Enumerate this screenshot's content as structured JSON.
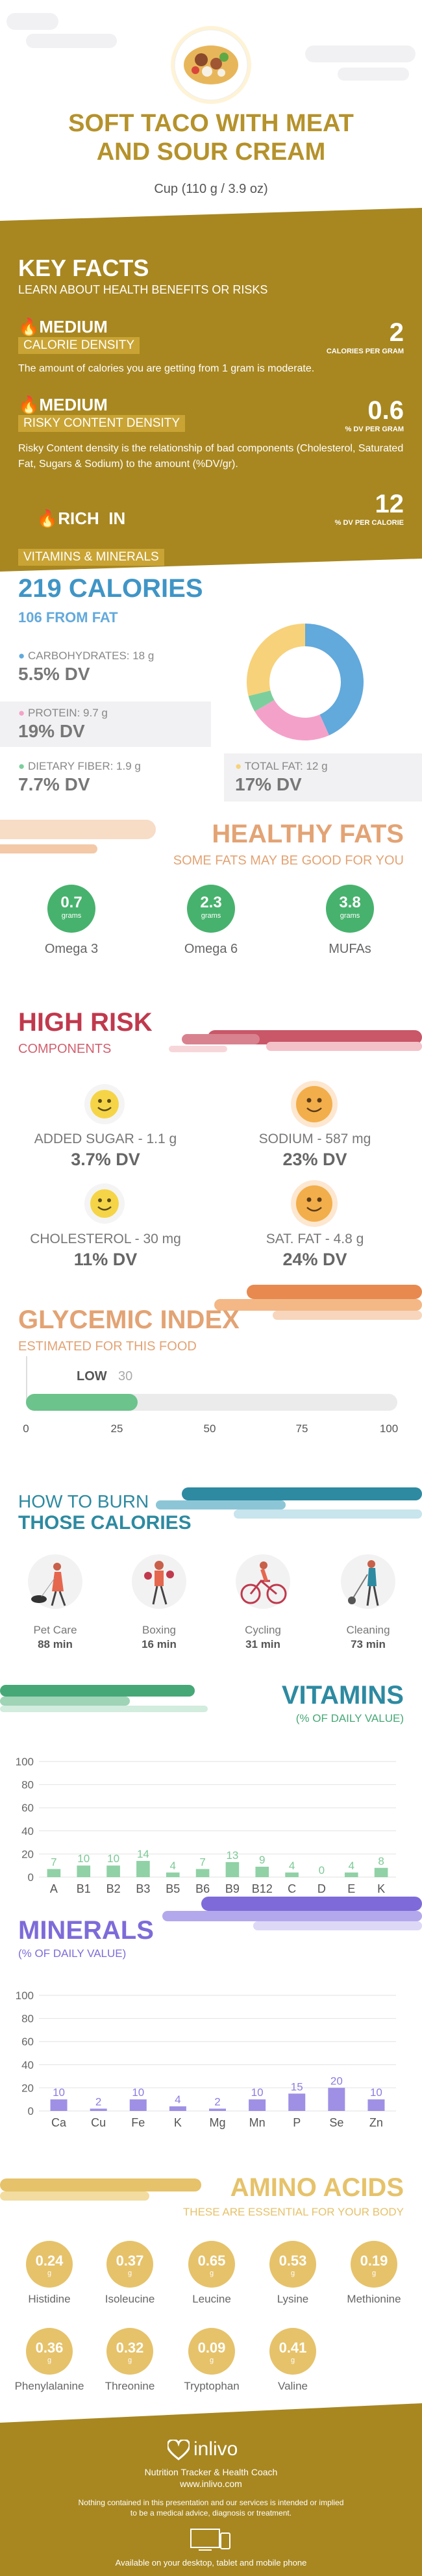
{
  "header": {
    "title_line1": "SOFT TACO WITH MEAT",
    "title_line2": "AND SOUR CREAM",
    "serving": "Cup (110 g / 3.9 oz)"
  },
  "key_facts": {
    "title": "KEY FACTS",
    "subtitle": "LEARN ABOUT HEALTH BENEFITS OR RISKS",
    "items": [
      {
        "level": "MEDIUM",
        "name": "CALORIE DENSITY",
        "value": "2",
        "unit": "CALORIES PER GRAM",
        "desc": "The amount of calories you are getting from 1 gram is moderate."
      },
      {
        "level": "MEDIUM",
        "name": "RISKY CONTENT DENSITY",
        "value": "0.6",
        "unit": "% DV PER GRAM",
        "desc": "Risky Content density is the relationship of bad components (Cholesterol, Saturated Fat, Sugars & Sodium) to the amount (%DV/gr)."
      },
      {
        "level": "RICH  IN",
        "name": "VITAMINS & MINERALS",
        "value": "12",
        "unit": "% DV PER CALORIE",
        "desc": ""
      }
    ]
  },
  "calories": {
    "title": "219 CALORIES",
    "from_fat": "106 FROM FAT",
    "carbs_label": "CARBOHYDRATES: 18 g",
    "carbs_dv": "5.5% DV",
    "protein_label": "PROTEIN: 9.7 g",
    "protein_dv": "19% DV",
    "fiber_label": "DIETARY FIBER: 1.9 g",
    "fiber_dv": "7.7% DV",
    "fat_label": "TOTAL FAT: 12 g",
    "fat_dv": "17% DV",
    "colors": {
      "carbs": "#62a9dc",
      "protein": "#f4a1c9",
      "fiber": "#7ccf9d",
      "fat": "#f7d27a"
    }
  },
  "healthy_fats": {
    "title": "HEALTHY FATS",
    "subtitle": "SOME FATS MAY BE GOOD FOR YOU",
    "unit": "grams",
    "items": [
      {
        "value": "0.7",
        "label": "Omega 3"
      },
      {
        "value": "2.3",
        "label": "Omega 6"
      },
      {
        "value": "3.8",
        "label": "MUFAs"
      }
    ]
  },
  "high_risk": {
    "title": "HIGH RISK",
    "subtitle": "COMPONENTS",
    "items": [
      {
        "label": "ADDED SUGAR - 1.1 g",
        "dv": "3.7% DV",
        "color": "#f5d547"
      },
      {
        "label": "SODIUM - 587 mg",
        "dv": "23% DV",
        "color": "#f2ae4a"
      },
      {
        "label": "CHOLESTEROL - 30 mg",
        "dv": "11% DV",
        "color": "#f5d547"
      },
      {
        "label": "SAT. FAT - 4.8 g",
        "dv": "24% DV",
        "color": "#f2ae4a"
      }
    ]
  },
  "glycemic": {
    "title": "GLYCEMIC INDEX",
    "subtitle": "ESTIMATED FOR THIS FOOD",
    "level": "LOW",
    "value": "30",
    "ticks": [
      "0",
      "25",
      "50",
      "75",
      "100"
    ],
    "gi_value": 30
  },
  "burn": {
    "title1": "HOW TO BURN",
    "title2": "THOSE CALORIES",
    "items": [
      {
        "label": "Pet Care",
        "time": "88 min"
      },
      {
        "label": "Boxing",
        "time": "16 min"
      },
      {
        "label": "Cycling",
        "time": "31 min"
      },
      {
        "label": "Cleaning",
        "time": "73 min"
      }
    ]
  },
  "vitamins": {
    "title": "VITAMINS",
    "subtitle": "(% OF DAILY VALUE)"
  },
  "minerals": {
    "title": "MINERALS",
    "subtitle": "(% OF DAILY VALUE)"
  },
  "amino": {
    "title": "AMINO ACIDS",
    "subtitle": "THESE ARE ESSENTIAL FOR YOUR BODY",
    "unit": "g",
    "items": [
      {
        "value": "0.24",
        "label": "Histidine"
      },
      {
        "value": "0.37",
        "label": "Isoleucine"
      },
      {
        "value": "0.65",
        "label": "Leucine"
      },
      {
        "value": "0.53",
        "label": "Lysine"
      },
      {
        "value": "0.19",
        "label": "Methionine"
      },
      {
        "value": "0.36",
        "label": "Phenylalanine"
      },
      {
        "value": "0.32",
        "label": "Threonine"
      },
      {
        "value": "0.09",
        "label": "Tryptophan"
      },
      {
        "value": "0.41",
        "label": "Valine"
      }
    ]
  },
  "footer": {
    "brand": "inlivo",
    "tagline": "Nutrition Tracker & Health Coach",
    "url": "www.inlivo.com",
    "disclaimer1": "Nothing contained in this presentation and our services is intended or implied",
    "disclaimer2": "to be a medical advice, diagnosis or treatment.",
    "available": "Available on your desktop, tablet and mobile phone"
  },
  "chart_data": [
    {
      "type": "pie",
      "title": "219 CALORIES",
      "categories": [
        "CARBOHYDRATES",
        "PROTEIN",
        "DIETARY FIBER",
        "TOTAL FAT"
      ],
      "values": [
        18,
        9.7,
        1.9,
        12
      ]
    },
    {
      "type": "bar",
      "title": "VITAMINS",
      "subtitle": "(% OF DAILY VALUE)",
      "categories": [
        "A",
        "B1",
        "B2",
        "B3",
        "B5",
        "B6",
        "B9",
        "B12",
        "C",
        "D",
        "E",
        "K"
      ],
      "values": [
        7,
        10,
        10,
        14,
        4,
        7,
        13,
        9,
        4,
        0,
        4,
        8
      ],
      "yticks": [
        "0",
        "20",
        "40",
        "60",
        "80",
        "100"
      ],
      "ylim": [
        0,
        100
      ],
      "color": "#7cc996"
    },
    {
      "type": "bar",
      "title": "MINERALS",
      "subtitle": "(% OF DAILY VALUE)",
      "categories": [
        "Ca",
        "Cu",
        "Fe",
        "K",
        "Mg",
        "Mn",
        "P",
        "Se",
        "Zn"
      ],
      "values": [
        10,
        2,
        10,
        4,
        2,
        10,
        15,
        20,
        10
      ],
      "yticks": [
        "0",
        "20",
        "40",
        "60",
        "80",
        "100"
      ],
      "ylim": [
        0,
        100
      ],
      "color": "#8e7ce0"
    }
  ]
}
